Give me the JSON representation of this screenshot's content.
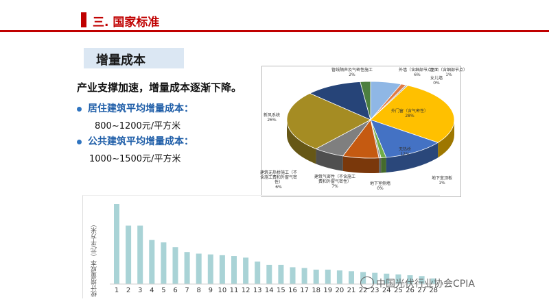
{
  "header": {
    "title": "三. 国家标准"
  },
  "subtitle": "增量成本",
  "intro": "产业支撑加速，增量成本逐渐下降。",
  "bullets": [
    {
      "label": "居住建筑平均增量成本：",
      "range": "800~1200元/平方米"
    },
    {
      "label": "公共建筑平均增量成本：",
      "range": "1000~1500元/平方米"
    }
  ],
  "colors": {
    "accent": "#c00000",
    "subtitle_bg": "#dbe7f3",
    "bullet": "#1f5ea8",
    "bar": "#a9d3d6"
  },
  "watermark": "中国光伏行业协会CPIA",
  "chart_data": [
    {
      "type": "pie",
      "slices": [
        {
          "label": "外墙（含细部节点）",
          "value": 6,
          "value_label": "6%",
          "color": "#8fb7e5"
        },
        {
          "label": "屋面（含细部节点）",
          "value": 1,
          "value_label": "1%",
          "color": "#e07a45"
        },
        {
          "label": "女儿墙",
          "value": 0,
          "value_label": "0%",
          "color": "#b0b0b0"
        },
        {
          "label": "外门窗（含气密性）",
          "value": 28,
          "value_label": "28%",
          "color": "#ffc000"
        },
        {
          "label": "无热桥",
          "value": 12,
          "value_label": "12%",
          "color": "#4472c4"
        },
        {
          "label": "地下室顶板",
          "value": 1,
          "value_label": "1%",
          "color": "#70ad47"
        },
        {
          "label": "地下室侧墙",
          "value": 0,
          "value_label": "0%",
          "color": "#9e9e9e"
        },
        {
          "label": "建筑气密性（不含施工费和外窗气密性）",
          "value": 7,
          "value_label": "7%",
          "color": "#c55a11"
        },
        {
          "label": "建筑无热桥施工（不含施工费和外窗气密性）",
          "value": 6,
          "value_label": "6%",
          "color": "#7f7f7f"
        },
        {
          "label": "新风系统",
          "value": 26,
          "value_label": "26%",
          "color": "#a58c23"
        },
        {
          "label": "",
          "value": 11,
          "value_label": "",
          "color": "#264478"
        },
        {
          "label": "管线隔声及气密性施工",
          "value": 2,
          "value_label": "2%",
          "color": "#4c7f3f"
        }
      ]
    },
    {
      "type": "bar",
      "categories": [
        "1",
        "2",
        "3",
        "4",
        "5",
        "6",
        "7",
        "8",
        "9",
        "10",
        "11",
        "12",
        "13",
        "14",
        "15",
        "16",
        "17",
        "18",
        "19",
        "20",
        "21",
        "22",
        "23",
        "24",
        "25",
        "26",
        "27",
        "28"
      ],
      "values": [
        100,
        73,
        73,
        55,
        52,
        46,
        40,
        38,
        37,
        36,
        35,
        33,
        28,
        24,
        24,
        21,
        20,
        18,
        18,
        17,
        16,
        15,
        14,
        13,
        12,
        11,
        10,
        7
      ],
      "ylabel": "统计增量成本（元/平方米）",
      "ylim": [
        0,
        100
      ]
    }
  ]
}
